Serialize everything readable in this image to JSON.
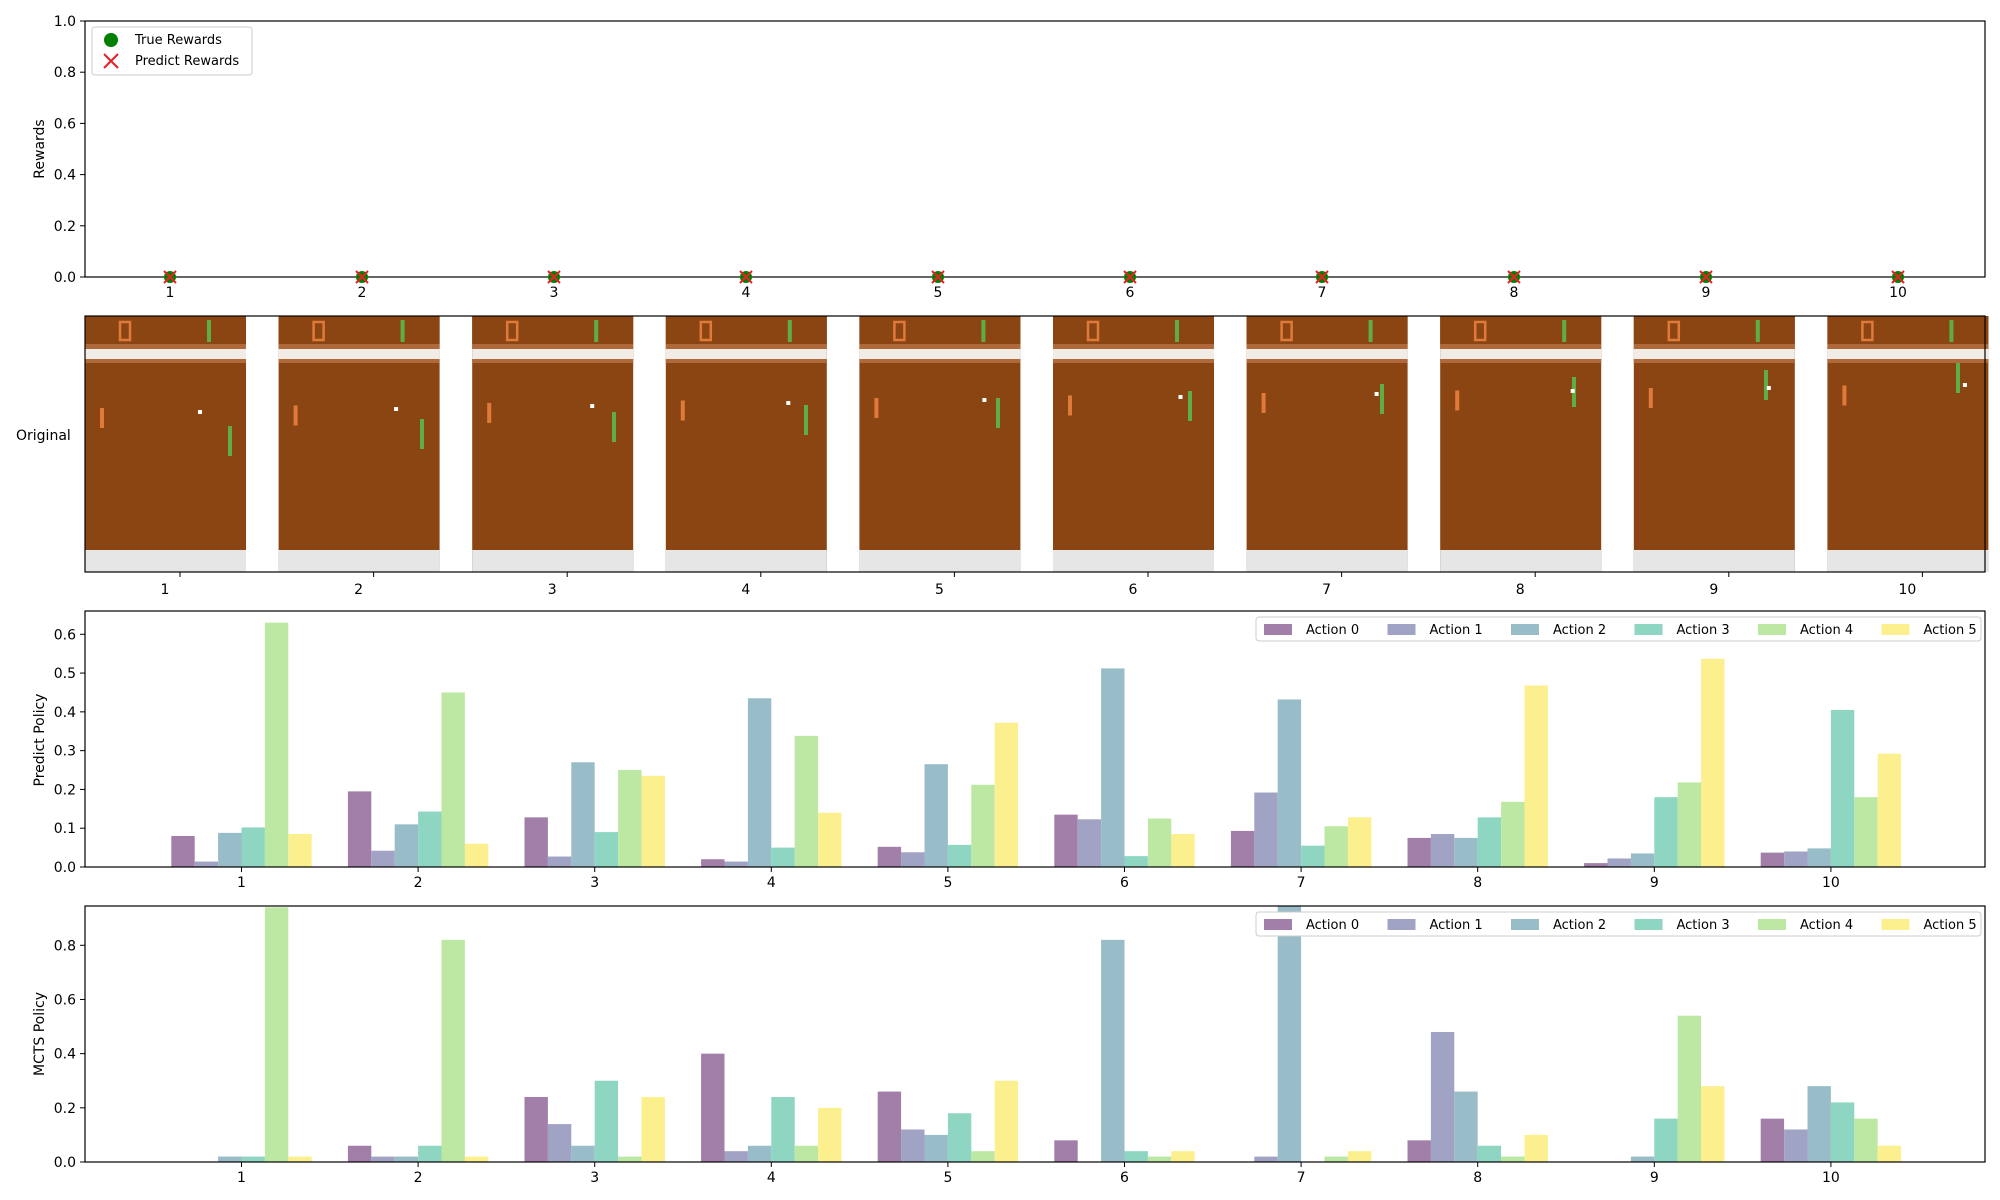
{
  "chart_data": [
    {
      "type": "scatter",
      "ylabel": "Rewards",
      "ylim": [
        0,
        1.0
      ],
      "yticks": [
        "0.0",
        "0.2",
        "0.4",
        "0.6",
        "0.8",
        "1.0"
      ],
      "categories": [
        "1",
        "2",
        "3",
        "4",
        "5",
        "6",
        "7",
        "8",
        "9",
        "10"
      ],
      "legend_position": "upper-left",
      "series": [
        {
          "name": "True Rewards",
          "marker": "circle",
          "color": "#008000",
          "values": [
            0,
            0,
            0,
            0,
            0,
            0,
            0,
            0,
            0,
            0
          ]
        },
        {
          "name": "Predict Rewards",
          "marker": "x",
          "color": "#e8202a",
          "values": [
            0,
            0,
            0,
            0,
            0,
            0,
            0,
            0,
            0,
            0
          ]
        }
      ]
    },
    {
      "type": "image-strip",
      "row_label": "Original",
      "categories": [
        "1",
        "2",
        "3",
        "4",
        "5",
        "6",
        "7",
        "8",
        "9",
        "10"
      ],
      "frame_colors": {
        "field": "#8b4513",
        "band": "#b0693a",
        "line": "#f2ece6",
        "floor": "#e6e6e6",
        "paddle": "#5fae44",
        "enemy": "#e07a3a",
        "ball": "#ffffff"
      }
    },
    {
      "type": "bar",
      "ylabel": "Predict Policy",
      "ylim": [
        0,
        0.66
      ],
      "yticks": [
        "0.0",
        "0.1",
        "0.2",
        "0.3",
        "0.4",
        "0.5",
        "0.6"
      ],
      "categories": [
        "1",
        "2",
        "3",
        "4",
        "5",
        "6",
        "7",
        "8",
        "9",
        "10"
      ],
      "legend_position": "top-right",
      "series": [
        {
          "name": "Action 0",
          "color": "#a17fa8",
          "values": [
            0.08,
            0.195,
            0.128,
            0.02,
            0.052,
            0.135,
            0.093,
            0.075,
            0.01,
            0.037
          ]
        },
        {
          "name": "Action 1",
          "color": "#a1a3c5",
          "values": [
            0.014,
            0.042,
            0.027,
            0.014,
            0.038,
            0.123,
            0.192,
            0.085,
            0.022,
            0.04
          ]
        },
        {
          "name": "Action 2",
          "color": "#99bcc9",
          "values": [
            0.088,
            0.11,
            0.27,
            0.435,
            0.265,
            0.512,
            0.432,
            0.075,
            0.035,
            0.048
          ]
        },
        {
          "name": "Action 3",
          "color": "#8fd6c2",
          "values": [
            0.102,
            0.143,
            0.09,
            0.05,
            0.057,
            0.028,
            0.055,
            0.128,
            0.18,
            0.405
          ]
        },
        {
          "name": "Action 4",
          "color": "#bde8a3",
          "values": [
            0.63,
            0.45,
            0.25,
            0.338,
            0.212,
            0.125,
            0.105,
            0.168,
            0.218,
            0.18
          ]
        },
        {
          "name": "Action 5",
          "color": "#fcef8e",
          "values": [
            0.085,
            0.06,
            0.235,
            0.14,
            0.372,
            0.085,
            0.128,
            0.468,
            0.537,
            0.292
          ]
        }
      ]
    },
    {
      "type": "bar",
      "ylabel": "MCTS Policy",
      "ylim": [
        0,
        0.945
      ],
      "yticks": [
        "0.0",
        "0.2",
        "0.4",
        "0.6",
        "0.8"
      ],
      "categories": [
        "1",
        "2",
        "3",
        "4",
        "5",
        "6",
        "7",
        "8",
        "9",
        "10"
      ],
      "legend_position": "top-right",
      "series": [
        {
          "name": "Action 0",
          "color": "#a17fa8",
          "values": [
            0,
            0.06,
            0.24,
            0.4,
            0.26,
            0.08,
            0,
            0.08,
            0,
            0.16
          ]
        },
        {
          "name": "Action 1",
          "color": "#a1a3c5",
          "values": [
            0,
            0.02,
            0.14,
            0.04,
            0.12,
            0,
            0.02,
            0.48,
            0,
            0.12
          ]
        },
        {
          "name": "Action 2",
          "color": "#99bcc9",
          "values": [
            0.02,
            0.02,
            0.06,
            0.06,
            0.1,
            0.82,
            0.96,
            0.26,
            0.02,
            0.28
          ]
        },
        {
          "name": "Action 3",
          "color": "#8fd6c2",
          "values": [
            0.02,
            0.06,
            0.3,
            0.24,
            0.18,
            0.04,
            0,
            0.06,
            0.16,
            0.22
          ]
        },
        {
          "name": "Action 4",
          "color": "#bde8a3",
          "values": [
            0.94,
            0.82,
            0.02,
            0.06,
            0.04,
            0.02,
            0.02,
            0.02,
            0.54,
            0.16
          ]
        },
        {
          "name": "Action 5",
          "color": "#fcef8e",
          "values": [
            0.02,
            0.02,
            0.24,
            0.2,
            0.3,
            0.04,
            0.04,
            0.1,
            0.28,
            0.06
          ]
        }
      ]
    }
  ]
}
